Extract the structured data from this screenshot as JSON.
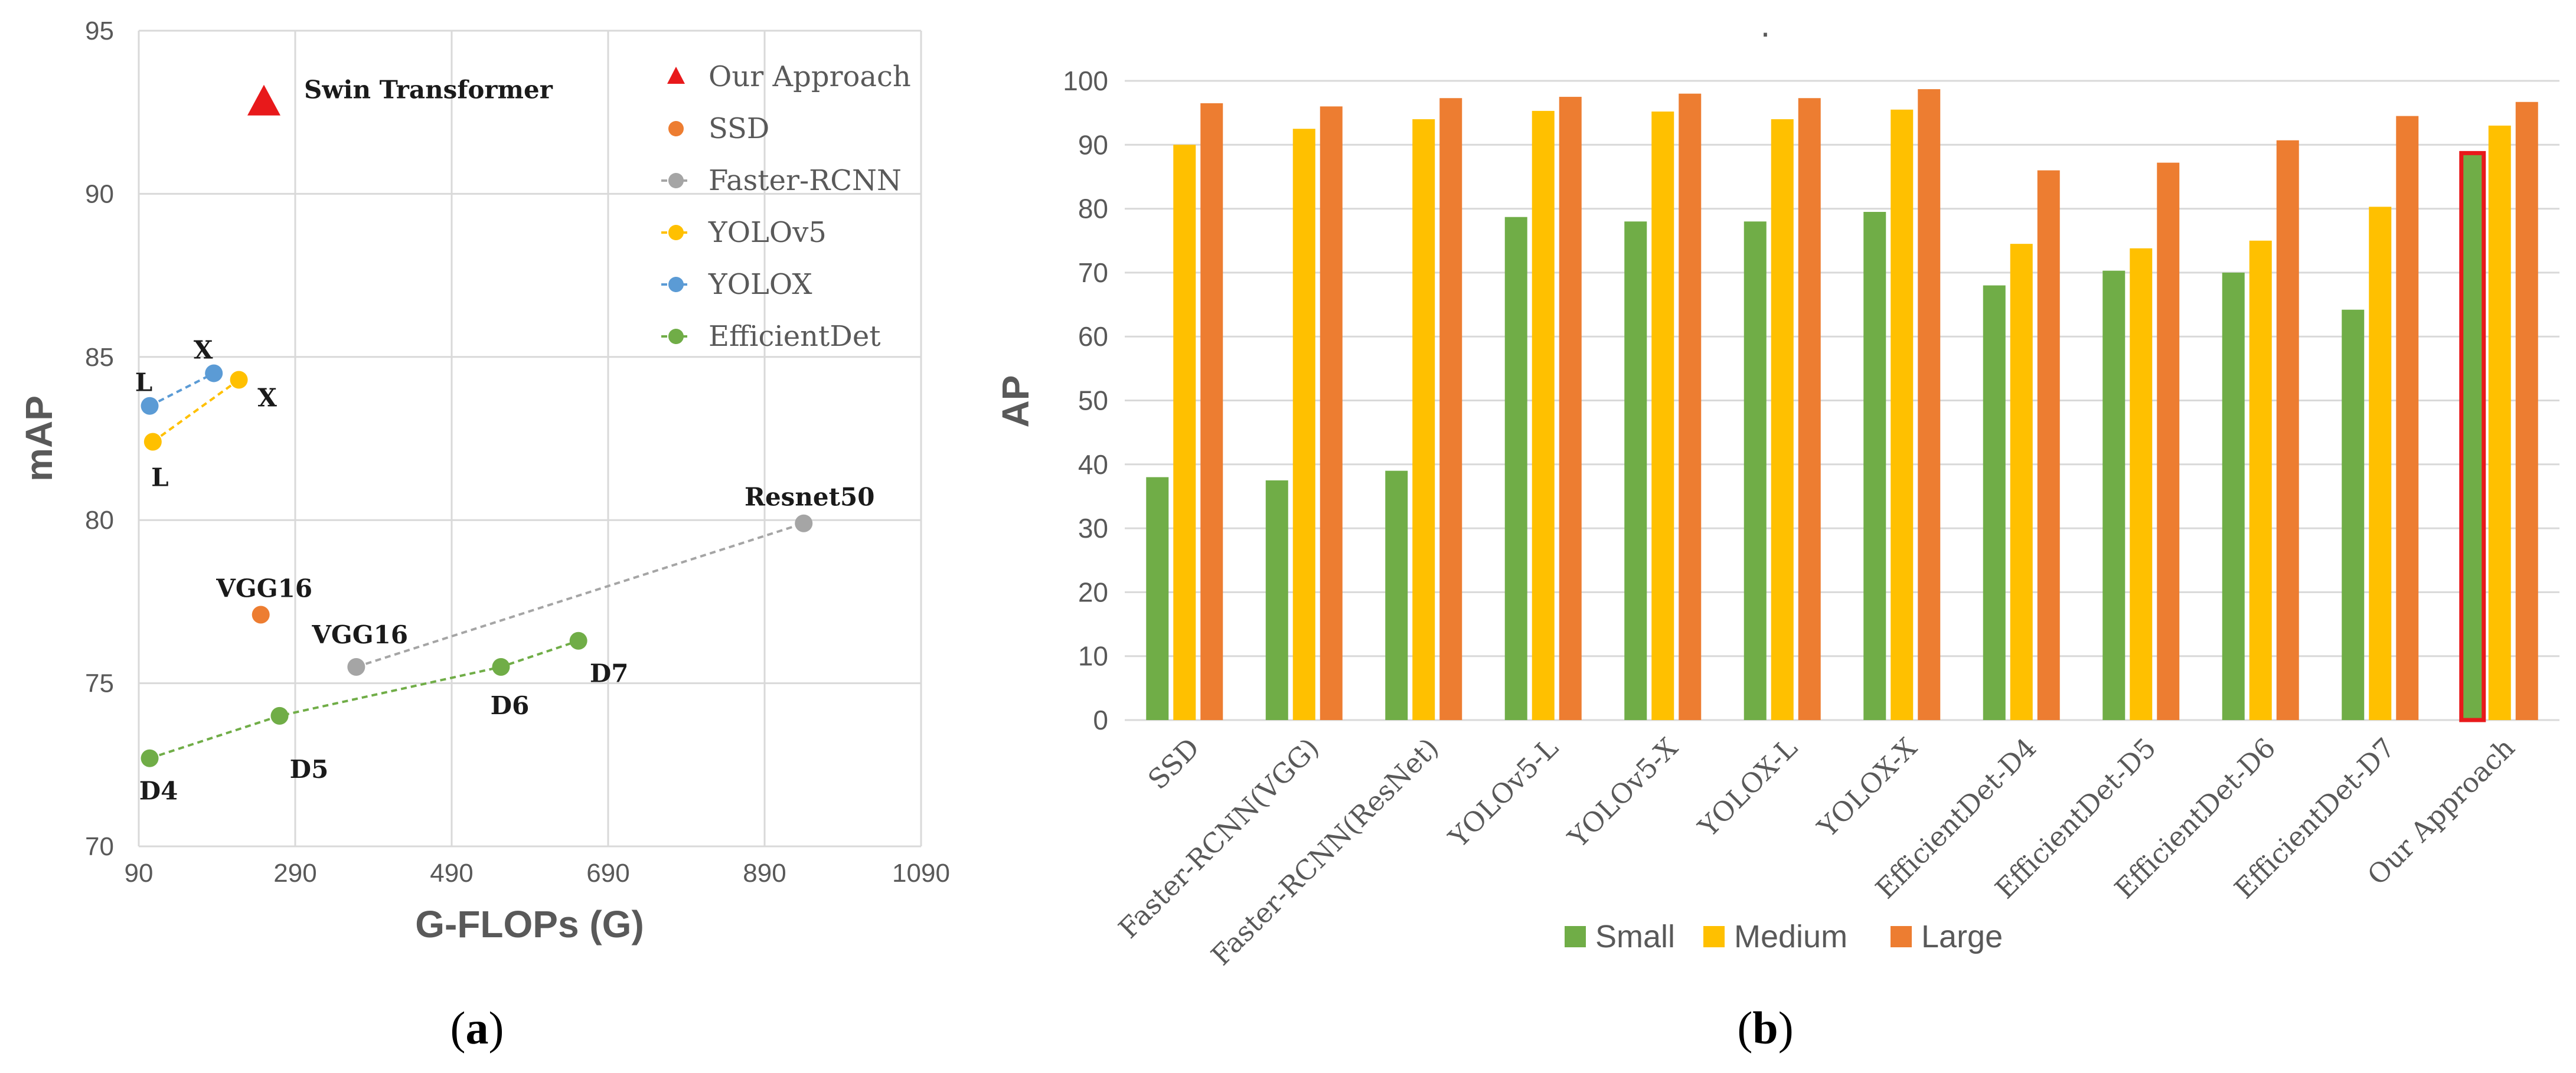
{
  "chart_data": [
    {
      "type": "scatter",
      "panel_label": "(a)",
      "panel_letter": "a",
      "xlabel": "G-FLOPs (G)",
      "ylabel": "mAP",
      "xlim": [
        90,
        1090
      ],
      "ylim": [
        70,
        95
      ],
      "xticks": [
        "90",
        "290",
        "490",
        "690",
        "890",
        "1090"
      ],
      "yticks": [
        "70",
        "75",
        "80",
        "85",
        "90",
        "95"
      ],
      "grid": true,
      "legend_position": "top-right",
      "series": [
        {
          "name": "Our Approach",
          "color": "#e8191b",
          "marker": "triangle",
          "line": false,
          "points": [
            {
              "x": 250,
              "y": 92.8,
              "label": "Swin Transformer"
            }
          ]
        },
        {
          "name": "SSD",
          "color": "#ed7d31",
          "marker": "circle",
          "line": false,
          "points": [
            {
              "x": 246,
              "y": 77.1,
              "label": "VGG16"
            }
          ]
        },
        {
          "name": "Faster-RCNN",
          "color": "#a5a5a5",
          "marker": "circle",
          "line": true,
          "points": [
            {
              "x": 368,
              "y": 75.5,
              "label": "VGG16"
            },
            {
              "x": 940,
              "y": 79.9,
              "label": "Resnet50"
            }
          ]
        },
        {
          "name": "YOLOv5",
          "color": "#ffc000",
          "marker": "circle",
          "line": true,
          "points": [
            {
              "x": 108,
              "y": 82.4,
              "label": "L"
            },
            {
              "x": 218,
              "y": 84.3,
              "label": "X"
            }
          ]
        },
        {
          "name": "YOLOX",
          "color": "#5b9bd5",
          "marker": "circle",
          "line": true,
          "points": [
            {
              "x": 104,
              "y": 83.5,
              "label": "L"
            },
            {
              "x": 186,
              "y": 84.5,
              "label": "X"
            }
          ]
        },
        {
          "name": "EfficientDet",
          "color": "#70ad47",
          "marker": "circle",
          "line": true,
          "points": [
            {
              "x": 104,
              "y": 72.7,
              "label": "D4"
            },
            {
              "x": 270,
              "y": 74.0,
              "label": "D5"
            },
            {
              "x": 553,
              "y": 75.5,
              "label": "D6"
            },
            {
              "x": 652,
              "y": 76.3,
              "label": "D7"
            }
          ]
        }
      ]
    },
    {
      "type": "bar",
      "panel_label": "(b)",
      "panel_letter": "b",
      "title": ".",
      "xlabel": "",
      "ylabel": "AP",
      "ylim": [
        0,
        100
      ],
      "yticks": [
        "0",
        "10",
        "20",
        "30",
        "40",
        "50",
        "60",
        "70",
        "80",
        "90",
        "100"
      ],
      "grid": true,
      "legend_position": "bottom",
      "highlight": {
        "category": "Our Approach",
        "series": "Small",
        "color": "#e8191b"
      },
      "categories": [
        "SSD",
        "Faster-RCNN(VGG)",
        "Faster-RCNN(ResNet)",
        "YOLOv5-L",
        "YOLOv5-X",
        "YOLOX-L",
        "YOLOX-X",
        "EfficientDet-D4",
        "EfficientDet-D5",
        "EfficientDet-D6",
        "EfficientDet-D7",
        "Our Approach"
      ],
      "series": [
        {
          "name": "Small",
          "color": "#70ad47",
          "values": [
            38,
            37.5,
            39,
            78.7,
            78,
            78,
            79.5,
            68,
            70.3,
            70,
            64.2,
            88.7
          ]
        },
        {
          "name": "Medium",
          "color": "#ffc000",
          "values": [
            90,
            92.5,
            94,
            95.3,
            95.2,
            94,
            95.5,
            74.5,
            73.8,
            75,
            80.3,
            93
          ]
        },
        {
          "name": "Large",
          "color": "#ed7d31",
          "values": [
            96.5,
            96,
            97.3,
            97.5,
            98,
            97.3,
            98.7,
            86,
            87.2,
            90.7,
            94.5,
            96.7
          ]
        }
      ]
    }
  ]
}
